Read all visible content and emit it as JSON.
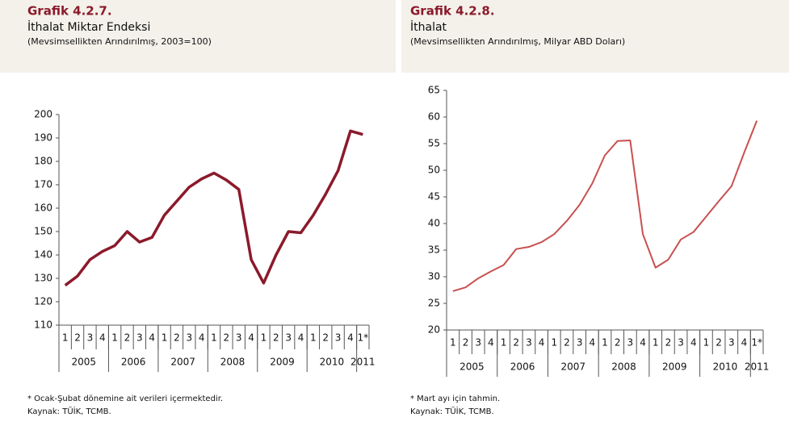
{
  "chart_data": [
    {
      "type": "line",
      "label": "Grafik 4.2.7.",
      "title": "İthalat Miktar Endeksi",
      "subtitle": "(Mevsimsellikten Arındırılmış, 2003=100)",
      "categories": [
        "1",
        "2",
        "3",
        "4",
        "1",
        "2",
        "3",
        "4",
        "1",
        "2",
        "3",
        "4",
        "1",
        "2",
        "3",
        "4",
        "1",
        "2",
        "3",
        "4",
        "1",
        "2",
        "3",
        "4",
        "1*"
      ],
      "years": [
        "2005",
        "2006",
        "2007",
        "2008",
        "2009",
        "2010",
        "2011"
      ],
      "series": [
        {
          "color": "#8b1a2b",
          "values": [
            127,
            131,
            138,
            141.5,
            144,
            150,
            145.5,
            147.5,
            157,
            163,
            169,
            172.5,
            175,
            172,
            168,
            138,
            128,
            140,
            150,
            149.5,
            157,
            166,
            176,
            193,
            191.5
          ]
        }
      ],
      "ylim": [
        110,
        200
      ],
      "yticks": [
        110,
        120,
        130,
        140,
        150,
        160,
        170,
        180,
        190,
        200
      ],
      "footnote": "* Ocak-Şubat dönemine ait verileri içermektedir.",
      "source": "Kaynak: TÜİK, TCMB."
    },
    {
      "type": "line",
      "label": "Grafik 4.2.8.",
      "title": "İthalat",
      "subtitle": "(Mevsimsellikten Arındırılmış, Milyar ABD Doları)",
      "categories": [
        "1",
        "2",
        "3",
        "4",
        "1",
        "2",
        "3",
        "4",
        "1",
        "2",
        "3",
        "4",
        "1",
        "2",
        "3",
        "4",
        "1",
        "2",
        "3",
        "4",
        "1",
        "2",
        "3",
        "4",
        "1*"
      ],
      "years": [
        "2005",
        "2006",
        "2007",
        "2008",
        "2009",
        "2010",
        "2011"
      ],
      "series": [
        {
          "color": "#c8504f",
          "values": [
            27.3,
            28,
            29.7,
            31,
            32.2,
            35.2,
            35.6,
            36.5,
            38,
            40.5,
            43.5,
            47.5,
            52.8,
            55.5,
            55.6,
            38,
            31.7,
            33.2,
            37,
            38.4,
            41.3,
            44.2,
            47,
            53.3,
            59.3
          ]
        }
      ],
      "ylim": [
        20,
        65
      ],
      "yticks": [
        20,
        25,
        30,
        35,
        40,
        45,
        50,
        55,
        60,
        65
      ],
      "footnote": "* Mart ayı için tahmin.",
      "source": "Kaynak: TÜİK, TCMB."
    }
  ]
}
